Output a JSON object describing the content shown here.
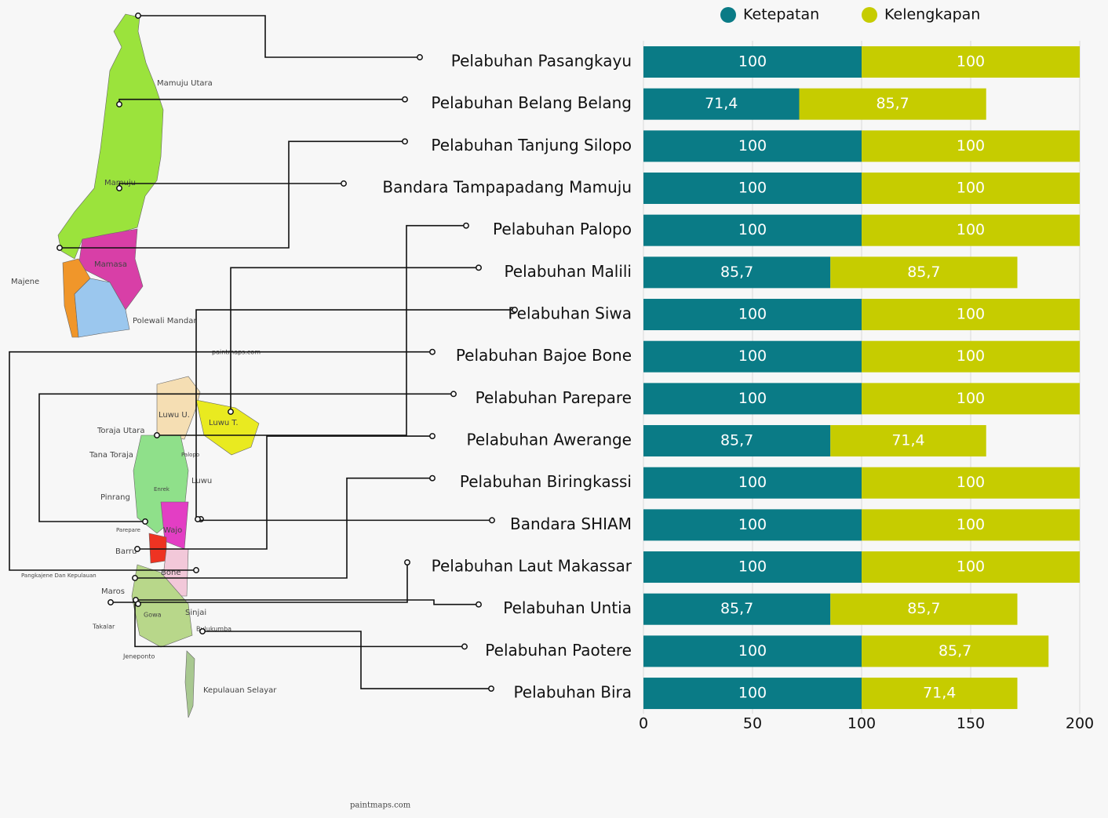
{
  "chart_data": {
    "type": "bar",
    "orientation": "horizontal",
    "stacked": true,
    "categories": [
      "Pelabuhan Pasangkayu",
      "Pelabuhan Belang Belang",
      "Pelabuhan Tanjung Silopo",
      "Bandara Tampapadang Mamuju",
      "Pelabuhan Palopo",
      "Pelabuhan Malili",
      "Pelabuhan Siwa",
      "Pelabuhan Bajoe Bone",
      "Pelabuhan Parepare",
      "Pelabuhan Awerange",
      "Pelabuhan Biringkassi",
      "Bandara SHIAM",
      "Pelabuhan Laut Makassar",
      "Pelabuhan Untia",
      "Pelabuhan Paotere",
      "Pelabuhan Bira"
    ],
    "series": [
      {
        "name": "Ketepatan",
        "color": "#0a7b86",
        "values": [
          100,
          71.4,
          100,
          100,
          100,
          85.7,
          100,
          100,
          100,
          85.7,
          100,
          100,
          100,
          85.7,
          100,
          100
        ],
        "value_labels": [
          "100",
          "71,4",
          "100",
          "100",
          "100",
          "85,7",
          "100",
          "100",
          "100",
          "85,7",
          "100",
          "100",
          "100",
          "85,7",
          "100",
          "100"
        ]
      },
      {
        "name": "Kelengkapan",
        "color": "#c6cc00",
        "values": [
          100,
          85.7,
          100,
          100,
          100,
          85.7,
          100,
          100,
          100,
          71.4,
          100,
          100,
          100,
          85.7,
          85.7,
          71.4
        ],
        "value_labels": [
          "100",
          "85,7",
          "100",
          "100",
          "100",
          "85,7",
          "100",
          "100",
          "100",
          "71,4",
          "100",
          "100",
          "100",
          "85,7",
          "85,7",
          "71,4"
        ]
      }
    ],
    "xlim": [
      0,
      200
    ],
    "xticks": [
      0,
      50,
      100,
      150,
      200
    ],
    "grid": true,
    "legend": "top"
  },
  "map": {
    "labels": [
      "Mamuju Utara",
      "Mamuju",
      "Mamasa",
      "Majene",
      "Polewali Mandar",
      "paintmaps.com",
      "Luwu U.",
      "Luwu T.",
      "Toraja Utara",
      "Tana Toraja",
      "Palopo",
      "Luwu",
      "Pinrang",
      "Enrek",
      "Wajo",
      "Parepare",
      "Barru",
      "Bone",
      "Pangkajene Dan Kepulauan",
      "Maros",
      "Sinjai",
      "Takalar",
      "Gowa",
      "Bulukumba",
      "Jeneponto",
      "Kepulauan Selayar",
      "paintmaps.com"
    ]
  }
}
